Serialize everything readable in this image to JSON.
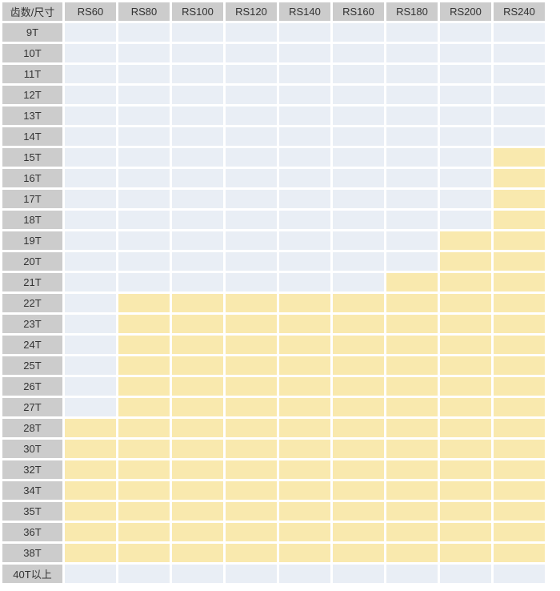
{
  "chart_data": {
    "type": "table",
    "title": "",
    "corner_header": "齿数/尺寸",
    "columns": [
      "RS60",
      "RS80",
      "RS100",
      "RS120",
      "RS140",
      "RS160",
      "RS180",
      "RS200",
      "RS240"
    ],
    "rows": [
      "9T",
      "10T",
      "11T",
      "12T",
      "13T",
      "14T",
      "15T",
      "16T",
      "17T",
      "18T",
      "19T",
      "20T",
      "21T",
      "22T",
      "23T",
      "24T",
      "25T",
      "26T",
      "27T",
      "28T",
      "30T",
      "32T",
      "34T",
      "35T",
      "36T",
      "38T",
      "40T以上"
    ],
    "highlighted": {
      "9T": [],
      "10T": [],
      "11T": [],
      "12T": [],
      "13T": [],
      "14T": [],
      "15T": [
        "RS240"
      ],
      "16T": [
        "RS240"
      ],
      "17T": [
        "RS240"
      ],
      "18T": [
        "RS240"
      ],
      "19T": [
        "RS200",
        "RS240"
      ],
      "20T": [
        "RS200",
        "RS240"
      ],
      "21T": [
        "RS180",
        "RS200",
        "RS240"
      ],
      "22T": [
        "RS80",
        "RS100",
        "RS120",
        "RS140",
        "RS160",
        "RS180",
        "RS200",
        "RS240"
      ],
      "23T": [
        "RS80",
        "RS100",
        "RS120",
        "RS140",
        "RS160",
        "RS180",
        "RS200",
        "RS240"
      ],
      "24T": [
        "RS80",
        "RS100",
        "RS120",
        "RS140",
        "RS160",
        "RS180",
        "RS200",
        "RS240"
      ],
      "25T": [
        "RS80",
        "RS100",
        "RS120",
        "RS140",
        "RS160",
        "RS180",
        "RS200",
        "RS240"
      ],
      "26T": [
        "RS80",
        "RS100",
        "RS120",
        "RS140",
        "RS160",
        "RS180",
        "RS200",
        "RS240"
      ],
      "27T": [
        "RS80",
        "RS100",
        "RS120",
        "RS140",
        "RS160",
        "RS180",
        "RS200",
        "RS240"
      ],
      "28T": [
        "RS60",
        "RS80",
        "RS100",
        "RS120",
        "RS140",
        "RS160",
        "RS180",
        "RS200",
        "RS240"
      ],
      "30T": [
        "RS60",
        "RS80",
        "RS100",
        "RS120",
        "RS140",
        "RS160",
        "RS180",
        "RS200",
        "RS240"
      ],
      "32T": [
        "RS60",
        "RS80",
        "RS100",
        "RS120",
        "RS140",
        "RS160",
        "RS180",
        "RS200",
        "RS240"
      ],
      "34T": [
        "RS60",
        "RS80",
        "RS100",
        "RS120",
        "RS140",
        "RS160",
        "RS180",
        "RS200",
        "RS240"
      ],
      "35T": [
        "RS60",
        "RS80",
        "RS100",
        "RS120",
        "RS140",
        "RS160",
        "RS180",
        "RS200",
        "RS240"
      ],
      "36T": [
        "RS60",
        "RS80",
        "RS100",
        "RS120",
        "RS140",
        "RS160",
        "RS180",
        "RS200",
        "RS240"
      ],
      "38T": [
        "RS60",
        "RS80",
        "RS100",
        "RS120",
        "RS140",
        "RS160",
        "RS180",
        "RS200",
        "RS240"
      ],
      "40T以上": []
    },
    "colors": {
      "header_bg": "#cccccc",
      "cell_default_bg": "#e9eef5",
      "cell_highlight_bg": "#f9e9ae",
      "text": "#333333",
      "background": "#ffffff"
    },
    "legend_note": "yellow cell = combination highlighted/available; light blue cell = not highlighted"
  }
}
